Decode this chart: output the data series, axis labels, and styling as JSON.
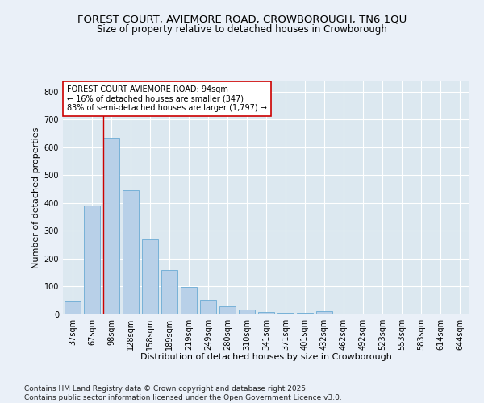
{
  "title1": "FOREST COURT, AVIEMORE ROAD, CROWBOROUGH, TN6 1QU",
  "title2": "Size of property relative to detached houses in Crowborough",
  "xlabel": "Distribution of detached houses by size in Crowborough",
  "ylabel": "Number of detached properties",
  "categories": [
    "37sqm",
    "67sqm",
    "98sqm",
    "128sqm",
    "158sqm",
    "189sqm",
    "219sqm",
    "249sqm",
    "280sqm",
    "310sqm",
    "341sqm",
    "371sqm",
    "401sqm",
    "432sqm",
    "462sqm",
    "492sqm",
    "523sqm",
    "553sqm",
    "583sqm",
    "614sqm",
    "644sqm"
  ],
  "values": [
    47,
    390,
    635,
    445,
    270,
    160,
    98,
    53,
    30,
    18,
    10,
    5,
    5,
    12,
    3,
    2,
    1,
    0,
    0,
    1,
    0
  ],
  "bar_color": "#b8d0e8",
  "bar_edge_color": "#6aaad4",
  "vline_color": "#cc0000",
  "vline_x_index": 2,
  "annotation_text": "FOREST COURT AVIEMORE ROAD: 94sqm\n← 16% of detached houses are smaller (347)\n83% of semi-detached houses are larger (1,797) →",
  "annotation_box_facecolor": "#ffffff",
  "annotation_box_edgecolor": "#cc0000",
  "ylim": [
    0,
    840
  ],
  "yticks": [
    0,
    100,
    200,
    300,
    400,
    500,
    600,
    700,
    800
  ],
  "bg_color": "#eaf0f8",
  "plot_bg_color": "#dce8f0",
  "grid_color": "#ffffff",
  "footer": "Contains HM Land Registry data © Crown copyright and database right 2025.\nContains public sector information licensed under the Open Government Licence v3.0.",
  "title_fontsize": 9.5,
  "subtitle_fontsize": 8.5,
  "axis_label_fontsize": 8,
  "tick_fontsize": 7,
  "annotation_fontsize": 7,
  "footer_fontsize": 6.5
}
